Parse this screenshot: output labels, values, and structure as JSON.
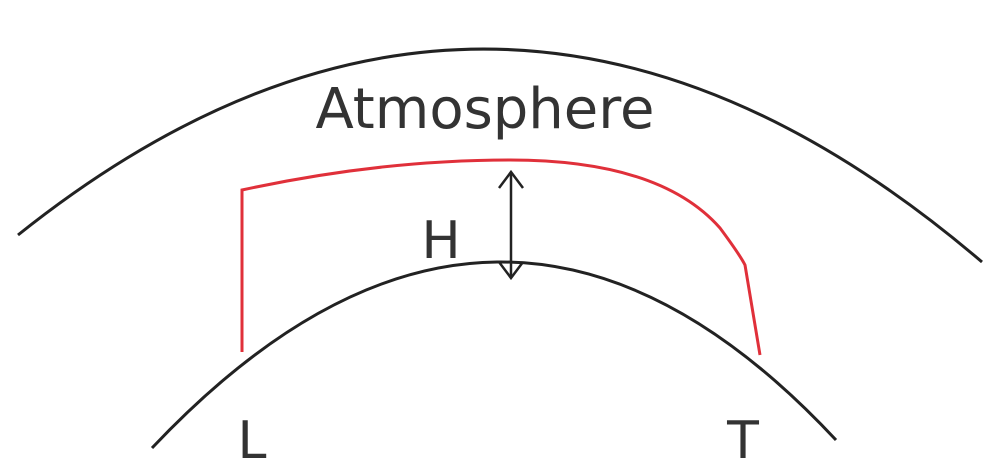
{
  "labels": {
    "atmosphere": "Atmosphere",
    "height": "H",
    "launch": "L",
    "target": "T"
  }
}
